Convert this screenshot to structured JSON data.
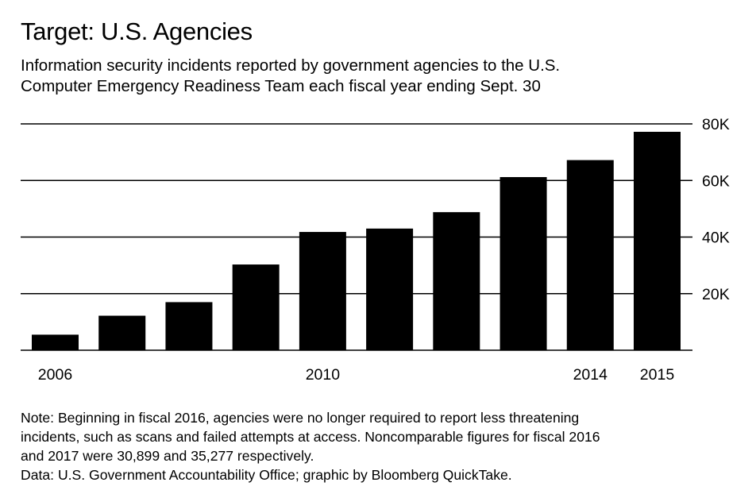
{
  "header": {
    "title": "Target: U.S. Agencies",
    "subtitle_lines": [
      "Information security incidents reported by government agencies to the U.S.",
      "Computer Emergency Readiness Team each fiscal year ending Sept. 30"
    ]
  },
  "footer": {
    "note_lines": [
      "Note: Beginning in fiscal 2016, agencies were no longer required to report less threatening",
      "incidents, such as scans and failed attempts at access. Noncomparable figures for fiscal 2016",
      "and 2017 were 30,899 and 35,277 respectively."
    ],
    "source": "Data: U.S. Government Accountability Office; graphic by Bloomberg QuickTake."
  },
  "colors": {
    "bars": "#000000",
    "gridlines": "#000000",
    "background": "#ffffff"
  },
  "chart_data": {
    "type": "bar",
    "title": "Target: U.S. Agencies",
    "subtitle": "Information security incidents reported by government agencies to the U.S. Computer Emergency Readiness Team each fiscal year ending Sept. 30",
    "categories": [
      "2006",
      "2007",
      "2008",
      "2009",
      "2010",
      "2011",
      "2012",
      "2013",
      "2014",
      "2015"
    ],
    "values": [
      5500,
      12200,
      17000,
      30300,
      41800,
      43000,
      48800,
      61200,
      67200,
      77200
    ],
    "x_tick_labels": [
      "2006",
      "2010",
      "2014",
      "2015"
    ],
    "y_tick_labels": [
      "20K",
      "40K",
      "60K",
      "80K"
    ],
    "y_ticks": [
      20000,
      40000,
      60000,
      80000
    ],
    "ylim": [
      0,
      80000
    ],
    "y_axis_side": "right",
    "grid": true,
    "legend": "none",
    "xlabel": "",
    "ylabel": ""
  }
}
